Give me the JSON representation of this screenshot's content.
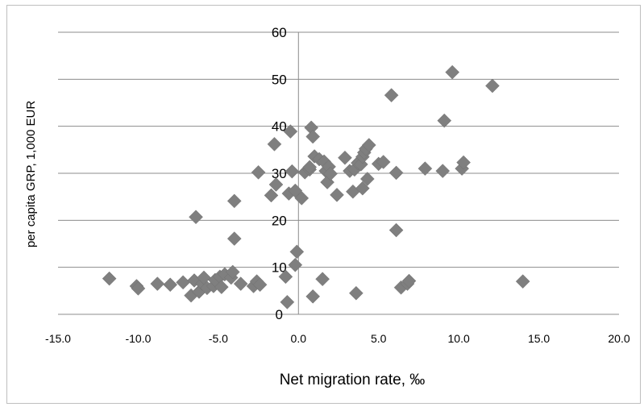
{
  "chart_data": {
    "type": "scatter",
    "xlabel": "Net migration rate, ‰",
    "ylabel": "per capita GRP, 1,000 EUR",
    "xlim": [
      -15,
      20
    ],
    "ylim": [
      0,
      60
    ],
    "x_ticks": [
      "-15.0",
      "-10.0",
      "-5.0",
      "0.0",
      "5.0",
      "10.0",
      "15.0",
      "20.0"
    ],
    "y_ticks": [
      "0",
      "10",
      "20",
      "30",
      "40",
      "50",
      "60"
    ],
    "x_tick_values": [
      -15,
      -10,
      -5,
      0,
      5,
      10,
      15,
      20
    ],
    "y_tick_values": [
      0,
      10,
      20,
      30,
      40,
      50,
      60
    ],
    "grid": "horizontal",
    "marker": "diamond",
    "marker_color": "#7f7f7f",
    "points": [
      [
        -11.8,
        7.6
      ],
      [
        -10.1,
        6.0
      ],
      [
        -10.0,
        5.5
      ],
      [
        -8.8,
        6.5
      ],
      [
        -8.0,
        6.3
      ],
      [
        -7.2,
        6.8
      ],
      [
        -6.7,
        4.0
      ],
      [
        -6.5,
        7.2
      ],
      [
        -6.4,
        20.7
      ],
      [
        -6.2,
        4.8
      ],
      [
        -6.0,
        6.5
      ],
      [
        -5.9,
        7.8
      ],
      [
        -5.7,
        5.6
      ],
      [
        -5.3,
        6.0
      ],
      [
        -5.2,
        7.3
      ],
      [
        -4.9,
        8.0
      ],
      [
        -4.8,
        5.8
      ],
      [
        -4.6,
        8.5
      ],
      [
        -4.2,
        7.8
      ],
      [
        -4.1,
        9.0
      ],
      [
        -4.0,
        16.1
      ],
      [
        -4.0,
        24.1
      ],
      [
        -3.6,
        6.5
      ],
      [
        -2.8,
        6.0
      ],
      [
        -2.6,
        7.0
      ],
      [
        -2.5,
        30.2
      ],
      [
        -2.4,
        6.3
      ],
      [
        -1.7,
        25.3
      ],
      [
        -1.5,
        36.2
      ],
      [
        -1.4,
        27.6
      ],
      [
        -0.8,
        8.0
      ],
      [
        -0.7,
        2.6
      ],
      [
        -0.6,
        25.7
      ],
      [
        -0.5,
        38.9
      ],
      [
        -0.4,
        30.4
      ],
      [
        -0.2,
        26.3
      ],
      [
        -0.1,
        13.3
      ],
      [
        -0.2,
        10.5
      ],
      [
        0.2,
        24.7
      ],
      [
        0.4,
        30.2
      ],
      [
        0.7,
        30.8
      ],
      [
        0.7,
        31.3
      ],
      [
        0.8,
        39.7
      ],
      [
        0.9,
        3.8
      ],
      [
        0.9,
        37.8
      ],
      [
        1.0,
        33.6
      ],
      [
        1.3,
        33.0
      ],
      [
        1.5,
        7.5
      ],
      [
        1.6,
        32.5
      ],
      [
        1.7,
        30.5
      ],
      [
        1.8,
        28.1
      ],
      [
        1.9,
        31.4
      ],
      [
        2.0,
        29.9
      ],
      [
        2.4,
        25.4
      ],
      [
        2.9,
        33.3
      ],
      [
        3.2,
        30.5
      ],
      [
        3.4,
        26.1
      ],
      [
        3.5,
        30.8
      ],
      [
        3.6,
        4.5
      ],
      [
        3.7,
        32.2
      ],
      [
        3.9,
        31.9
      ],
      [
        4.0,
        33.5
      ],
      [
        4.0,
        26.8
      ],
      [
        4.1,
        34.4
      ],
      [
        4.2,
        35.2
      ],
      [
        4.3,
        28.8
      ],
      [
        4.4,
        36.0
      ],
      [
        5.0,
        32.0
      ],
      [
        5.3,
        32.4
      ],
      [
        5.8,
        46.6
      ],
      [
        6.1,
        17.9
      ],
      [
        6.1,
        30.1
      ],
      [
        6.4,
        5.7
      ],
      [
        6.8,
        6.5
      ],
      [
        6.9,
        7.1
      ],
      [
        7.9,
        31.0
      ],
      [
        9.0,
        30.5
      ],
      [
        9.1,
        41.2
      ],
      [
        9.6,
        51.5
      ],
      [
        10.2,
        31.0
      ],
      [
        10.3,
        32.3
      ],
      [
        12.1,
        48.6
      ],
      [
        14.0,
        7.0
      ]
    ]
  }
}
